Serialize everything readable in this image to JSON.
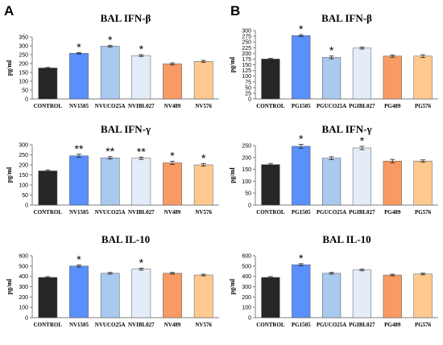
{
  "panel_letters": [
    "A",
    "B"
  ],
  "chart_data": [
    {
      "id": "A1",
      "type": "bar",
      "title": "BAL IFN-β",
      "ylabel": "pg/ml",
      "ylim": [
        0,
        350
      ],
      "yticks": [
        0,
        50,
        100,
        150,
        200,
        250,
        300,
        350
      ],
      "categories": [
        "CONTROL",
        "NV1505",
        "NVUCO25A",
        "NVIBL027",
        "NV489",
        "NV576"
      ],
      "values": [
        175,
        258,
        298,
        245,
        198,
        212
      ],
      "errors": [
        3,
        4,
        5,
        5,
        6,
        6
      ],
      "annotations": [
        "",
        "*",
        "*",
        "*",
        "",
        ""
      ],
      "colors": [
        "#262626",
        "#5b8ff9",
        "#a9c9ee",
        "#e3ecf8",
        "#f79a64",
        "#fdc98f"
      ],
      "grid": false
    },
    {
      "id": "B1",
      "type": "bar",
      "title": "BAL IFN-β",
      "ylabel": "pg/ml",
      "ylim": [
        0,
        300
      ],
      "yticks": [
        0,
        25,
        50,
        75,
        100,
        125,
        150,
        175,
        200,
        225,
        250,
        275,
        300
      ],
      "categories": [
        "CONTROL",
        "PG1505",
        "PGUCO25A",
        "PGIBL027",
        "PG489",
        "PG576"
      ],
      "values": [
        175,
        278,
        182,
        223,
        188,
        188
      ],
      "errors": [
        3,
        4,
        6,
        4,
        5,
        6
      ],
      "annotations": [
        "",
        "*",
        "*",
        "",
        "",
        ""
      ],
      "colors": [
        "#262626",
        "#5b8ff9",
        "#a9c9ee",
        "#e3ecf8",
        "#f79a64",
        "#fdc98f"
      ],
      "grid": false
    },
    {
      "id": "A2",
      "type": "bar",
      "title": "BAL IFN-γ",
      "ylabel": "pg/ml",
      "ylim": [
        0,
        300
      ],
      "yticks": [
        0,
        50,
        100,
        150,
        200,
        250,
        300
      ],
      "categories": [
        "CONTROL",
        "NV1505",
        "NVUCO25A",
        "NVIBL027",
        "NV489",
        "NV576"
      ],
      "values": [
        170,
        245,
        235,
        233,
        210,
        200
      ],
      "errors": [
        5,
        8,
        6,
        6,
        8,
        6
      ],
      "annotations": [
        "",
        "**",
        "**",
        "**",
        "*",
        "*"
      ],
      "colors": [
        "#262626",
        "#5b8ff9",
        "#a9c9ee",
        "#e3ecf8",
        "#f79a64",
        "#fdc98f"
      ],
      "grid": false
    },
    {
      "id": "B2",
      "type": "bar",
      "title": "BAL IFN-γ",
      "ylabel": "pg/ml",
      "ylim": [
        0,
        250
      ],
      "yticks": [
        0,
        50,
        100,
        150,
        200,
        250
      ],
      "categories": [
        "CONTROL",
        "PG1505",
        "PGUCO25A",
        "PGIBL027",
        "PG489",
        "PG576"
      ],
      "values": [
        170,
        247,
        197,
        240,
        185,
        185
      ],
      "errors": [
        5,
        8,
        6,
        7,
        7,
        5
      ],
      "annotations": [
        "",
        "*",
        "",
        "*",
        "",
        ""
      ],
      "colors": [
        "#262626",
        "#5b8ff9",
        "#a9c9ee",
        "#e3ecf8",
        "#f79a64",
        "#fdc98f"
      ],
      "grid": false
    },
    {
      "id": "A3",
      "type": "bar",
      "title": "BAL IL-10",
      "ylabel": "pg/ml",
      "ylim": [
        0,
        600
      ],
      "yticks": [
        0,
        100,
        200,
        300,
        400,
        500,
        600
      ],
      "categories": [
        "CONTROL",
        "NV1505",
        "NVUCO25A",
        "NVIBL027",
        "NV489",
        "NV576"
      ],
      "values": [
        390,
        500,
        430,
        470,
        430,
        413
      ],
      "errors": [
        8,
        10,
        8,
        10,
        8,
        8
      ],
      "annotations": [
        "",
        "*",
        "",
        "*",
        "",
        ""
      ],
      "colors": [
        "#262626",
        "#5b8ff9",
        "#a9c9ee",
        "#e3ecf8",
        "#f79a64",
        "#fdc98f"
      ],
      "grid": false
    },
    {
      "id": "B3",
      "type": "bar",
      "title": "BAL IL-10",
      "ylabel": "pg/ml",
      "ylim": [
        0,
        600
      ],
      "yticks": [
        0,
        100,
        200,
        300,
        400,
        500,
        600
      ],
      "categories": [
        "CONTROL",
        "PG1505",
        "PGUCO25A",
        "PGIBL027",
        "PG489",
        "PG576"
      ],
      "values": [
        390,
        513,
        430,
        462,
        413,
        423
      ],
      "errors": [
        8,
        10,
        8,
        8,
        8,
        8
      ],
      "annotations": [
        "",
        "*",
        "",
        "",
        "",
        ""
      ],
      "colors": [
        "#262626",
        "#5b8ff9",
        "#a9c9ee",
        "#e3ecf8",
        "#f79a64",
        "#fdc98f"
      ],
      "grid": false
    }
  ]
}
